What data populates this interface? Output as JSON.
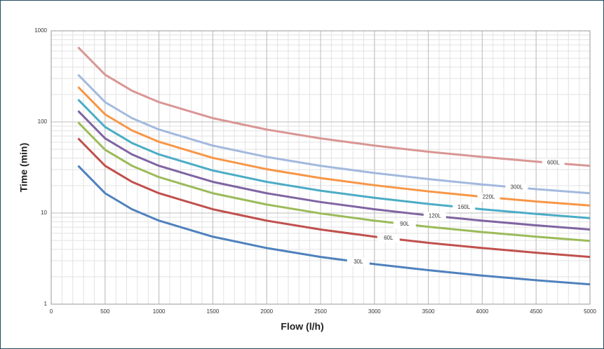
{
  "chart_data": {
    "type": "line",
    "x_label": "Flow (l/h)",
    "y_label": "Time (min)",
    "x": [
      250,
      500,
      750,
      1000,
      1500,
      2000,
      2500,
      3000,
      3500,
      4000,
      4500,
      5000
    ],
    "series": [
      {
        "name": "30L",
        "color": "#4f81bd",
        "values": [
          33,
          16.5,
          11,
          8.25,
          5.5,
          4.13,
          3.3,
          2.75,
          2.36,
          2.06,
          1.83,
          1.65
        ]
      },
      {
        "name": "60L",
        "color": "#c0504d",
        "values": [
          66,
          33,
          22,
          16.5,
          11,
          8.25,
          6.6,
          5.5,
          4.71,
          4.13,
          3.67,
          3.3
        ]
      },
      {
        "name": "90L",
        "color": "#9bbb59",
        "values": [
          99,
          49.5,
          33,
          24.8,
          16.5,
          12.4,
          9.9,
          8.25,
          7.07,
          6.19,
          5.5,
          4.95
        ]
      },
      {
        "name": "120L",
        "color": "#8064a2",
        "values": [
          132,
          66,
          44,
          33,
          22,
          16.5,
          13.2,
          11,
          9.43,
          8.25,
          7.33,
          6.6
        ]
      },
      {
        "name": "160L",
        "color": "#4bacc6",
        "values": [
          176,
          88,
          58.7,
          44,
          29.3,
          22,
          17.6,
          14.7,
          12.6,
          11,
          9.78,
          8.8
        ]
      },
      {
        "name": "220L",
        "color": "#f79646",
        "values": [
          242,
          121,
          80.7,
          60.5,
          40.3,
          30.3,
          24.2,
          20.2,
          17.3,
          15.1,
          13.4,
          12.1
        ]
      },
      {
        "name": "300L",
        "color": "#a3b9de",
        "values": [
          330,
          165,
          110,
          82.5,
          55,
          41.3,
          33,
          27.5,
          23.6,
          20.6,
          18.3,
          16.5
        ]
      },
      {
        "name": "600L",
        "color": "#d99694",
        "values": [
          660,
          330,
          220,
          165,
          110,
          82.5,
          66,
          55,
          47.1,
          41.3,
          36.7,
          33
        ]
      }
    ],
    "xlim": [
      0,
      5000
    ],
    "xticks": [
      0,
      500,
      1000,
      1500,
      2000,
      2500,
      3000,
      3500,
      4000,
      4500,
      5000
    ],
    "ylim": [
      1,
      1000
    ],
    "yticks": [
      1,
      10,
      100,
      1000
    ],
    "y_scale": "log",
    "grid": true,
    "minor_grid": true
  }
}
